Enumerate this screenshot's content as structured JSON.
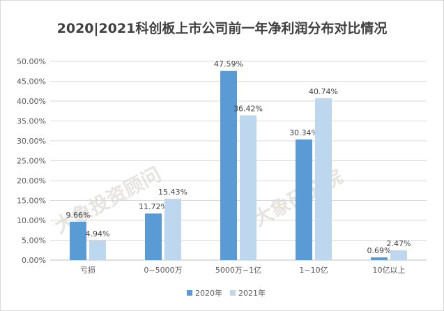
{
  "chart_data": {
    "type": "bar",
    "title": "2020|2021科创板上市公司前一年净利润分布对比情况",
    "categories": [
      "亏损",
      "0~5000万",
      "5000万~1亿",
      "1~10亿",
      "10亿以上"
    ],
    "series": [
      {
        "name": "2020年",
        "values": [
          9.66,
          11.72,
          47.59,
          30.34,
          0.69
        ],
        "labels": [
          "9.66%",
          "11.72%",
          "47.59%",
          "30.34%",
          "0.69%"
        ],
        "color": "#5b9bd5"
      },
      {
        "name": "2021年",
        "values": [
          4.94,
          15.43,
          36.42,
          40.74,
          2.47
        ],
        "labels": [
          "4.94%",
          "15.43%",
          "36.42%",
          "40.74%",
          "2.47%"
        ],
        "color": "#bdd7ee"
      }
    ],
    "y_ticks": [
      "0.00%",
      "5.00%",
      "10.00%",
      "15.00%",
      "20.00%",
      "25.00%",
      "30.00%",
      "35.00%",
      "40.00%",
      "45.00%",
      "50.00%"
    ],
    "ylim": [
      0,
      50
    ],
    "xlabel": "",
    "ylabel": "",
    "grid": true,
    "legend_position": "bottom"
  },
  "watermarks": [
    "大象投资顾问",
    "大象研究院"
  ]
}
